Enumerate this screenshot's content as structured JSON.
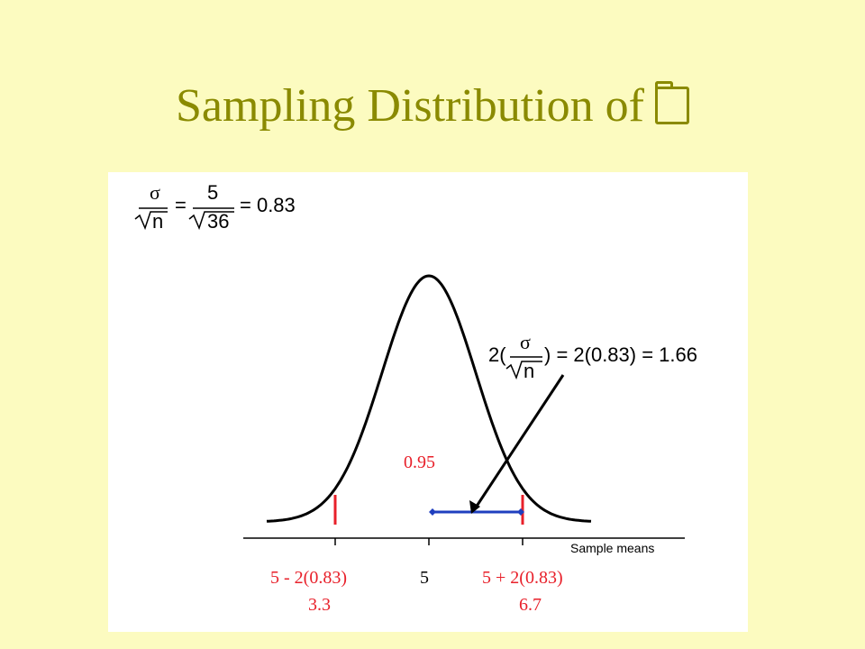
{
  "slide": {
    "title": "Sampling Distribution of",
    "title_symbol_icon": "x-bar-symbol-icon",
    "background_color": "#fcfbc0",
    "title_color": "#8a8a00"
  },
  "formula_top": {
    "sigma": "σ",
    "n": "n",
    "five": "5",
    "thirtysix": "36",
    "equals": "=",
    "result": "= 0.83"
  },
  "formula_right": {
    "prefix": "2(",
    "sigma": "σ",
    "n": "n",
    "suffix": ") = 2(0.83) = 1.66"
  },
  "diagram": {
    "probability_label": "0.95",
    "axis_label": "Sample means",
    "left_label": "5 - 2(0.83)",
    "left_value": "3.3",
    "center_label": "5",
    "right_label": "5 + 2(0.83)",
    "right_value": "6.7",
    "curve_color": "#000000",
    "marker_color": "#e8202a",
    "interval_color": "#1f3fbf"
  }
}
